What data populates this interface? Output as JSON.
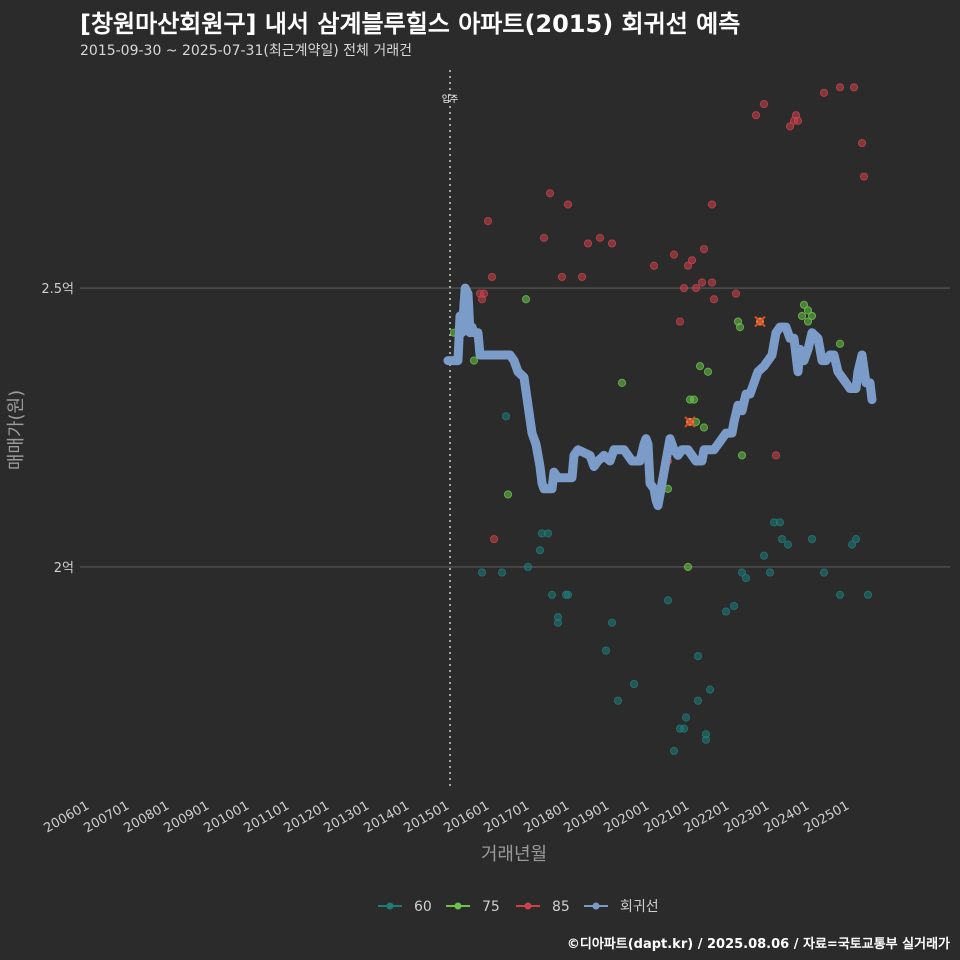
{
  "header": {
    "title": "[창원마산회원구] 내서 삼계블루힐스 아파트(2015) 회귀선 예측",
    "subtitle": "2015-09-30 ~ 2025-07-31(최근계약일) 전체 거래건"
  },
  "caption": "©디아파트(dapt.kr) / 2025.08.06 / 자료=국토교통부 실거래가",
  "colors": {
    "background": "#2b2b2c",
    "s60": "#1f7a78",
    "s75": "#6cc24a",
    "s85": "#c9424a",
    "regression": "#7b9cc8",
    "grid": "#5a5a5a",
    "marker": "#e04a2a"
  },
  "chart_data": {
    "type": "scatter",
    "xlabel": "거래년월",
    "ylabel": "매매가(원)",
    "xlim": [
      2005.75,
      2027.5
    ],
    "ylim": [
      1.6,
      2.9
    ],
    "x_ticks": [
      {
        "value": 2006,
        "label": "200601"
      },
      {
        "value": 2007,
        "label": "200701"
      },
      {
        "value": 2008,
        "label": "200801"
      },
      {
        "value": 2009,
        "label": "200901"
      },
      {
        "value": 2010,
        "label": "201001"
      },
      {
        "value": 2011,
        "label": "201101"
      },
      {
        "value": 2012,
        "label": "201201"
      },
      {
        "value": 2013,
        "label": "201301"
      },
      {
        "value": 2014,
        "label": "201401"
      },
      {
        "value": 2015,
        "label": "201501"
      },
      {
        "value": 2016,
        "label": "201601"
      },
      {
        "value": 2017,
        "label": "201701"
      },
      {
        "value": 2018,
        "label": "201801"
      },
      {
        "value": 2019,
        "label": "201901"
      },
      {
        "value": 2020,
        "label": "202001"
      },
      {
        "value": 2021,
        "label": "202101"
      },
      {
        "value": 2022,
        "label": "202201"
      },
      {
        "value": 2023,
        "label": "202301"
      },
      {
        "value": 2024,
        "label": "202401"
      },
      {
        "value": 2025,
        "label": "202501"
      }
    ],
    "y_ticks": [
      {
        "value": 2.0,
        "label": "2억"
      },
      {
        "value": 2.5,
        "label": "2.5억"
      }
    ],
    "annotation": {
      "x": 2015.0,
      "label": "입주"
    },
    "legend": [
      {
        "key": "60",
        "label": "60"
      },
      {
        "key": "75",
        "label": "75"
      },
      {
        "key": "85",
        "label": "85"
      },
      {
        "key": "regression",
        "label": "회귀선"
      }
    ],
    "series": [
      {
        "name": "60",
        "points": [
          [
            2015.8,
            1.99
          ],
          [
            2016.3,
            1.99
          ],
          [
            2016.4,
            2.27
          ],
          [
            2016.95,
            2.0
          ],
          [
            2017.25,
            2.03
          ],
          [
            2017.3,
            2.06
          ],
          [
            2017.45,
            2.06
          ],
          [
            2017.55,
            1.95
          ],
          [
            2017.7,
            1.91
          ],
          [
            2017.7,
            1.9
          ],
          [
            2017.9,
            1.95
          ],
          [
            2017.95,
            1.95
          ],
          [
            2018.9,
            1.85
          ],
          [
            2019.05,
            1.9
          ],
          [
            2019.2,
            1.76
          ],
          [
            2019.6,
            1.79
          ],
          [
            2020.45,
            1.94
          ],
          [
            2020.6,
            1.67
          ],
          [
            2020.75,
            1.71
          ],
          [
            2020.85,
            1.71
          ],
          [
            2020.9,
            1.73
          ],
          [
            2021.2,
            1.76
          ],
          [
            2021.2,
            1.84
          ],
          [
            2021.4,
            1.7
          ],
          [
            2021.4,
            1.69
          ],
          [
            2021.5,
            1.78
          ],
          [
            2021.9,
            1.92
          ],
          [
            2022.1,
            1.93
          ],
          [
            2022.3,
            1.99
          ],
          [
            2022.4,
            1.98
          ],
          [
            2022.85,
            2.02
          ],
          [
            2023.0,
            1.99
          ],
          [
            2023.1,
            2.08
          ],
          [
            2023.25,
            2.08
          ],
          [
            2023.3,
            2.05
          ],
          [
            2023.45,
            2.04
          ],
          [
            2024.05,
            2.05
          ],
          [
            2024.35,
            1.99
          ],
          [
            2024.75,
            1.95
          ],
          [
            2025.05,
            2.04
          ],
          [
            2025.15,
            2.05
          ],
          [
            2025.45,
            1.95
          ]
        ]
      },
      {
        "name": "75",
        "points": [
          [
            2015.1,
            2.42
          ],
          [
            2015.6,
            2.37
          ],
          [
            2016.45,
            2.13
          ],
          [
            2016.9,
            2.48
          ],
          [
            2019.3,
            2.33
          ],
          [
            2020.45,
            2.14
          ],
          [
            2020.95,
            2.0
          ],
          [
            2021.0,
            2.3
          ],
          [
            2021.1,
            2.3
          ],
          [
            2021.15,
            2.26
          ],
          [
            2021.25,
            2.36
          ],
          [
            2021.35,
            2.25
          ],
          [
            2021.45,
            2.35
          ],
          [
            2021.5,
            2.21
          ],
          [
            2022.2,
            2.44
          ],
          [
            2022.25,
            2.43
          ],
          [
            2022.3,
            2.2
          ],
          [
            2023.8,
            2.45
          ],
          [
            2023.85,
            2.47
          ],
          [
            2023.95,
            2.44
          ],
          [
            2023.95,
            2.46
          ],
          [
            2024.05,
            2.45
          ],
          [
            2024.75,
            2.4
          ]
        ]
      },
      {
        "name": "85",
        "points": [
          [
            2015.75,
            2.49
          ],
          [
            2015.8,
            2.48
          ],
          [
            2015.85,
            2.49
          ],
          [
            2015.95,
            2.62
          ],
          [
            2016.05,
            2.52
          ],
          [
            2016.1,
            2.05
          ],
          [
            2017.35,
            2.59
          ],
          [
            2017.5,
            2.67
          ],
          [
            2017.8,
            2.52
          ],
          [
            2017.95,
            2.65
          ],
          [
            2018.3,
            2.52
          ],
          [
            2018.45,
            2.58
          ],
          [
            2018.75,
            2.59
          ],
          [
            2019.05,
            2.58
          ],
          [
            2020.1,
            2.54
          ],
          [
            2020.45,
            2.19
          ],
          [
            2020.6,
            2.56
          ],
          [
            2020.75,
            2.44
          ],
          [
            2020.85,
            2.5
          ],
          [
            2020.95,
            2.54
          ],
          [
            2021.05,
            2.55
          ],
          [
            2021.15,
            2.5
          ],
          [
            2021.3,
            2.51
          ],
          [
            2021.35,
            2.57
          ],
          [
            2021.55,
            2.65
          ],
          [
            2021.55,
            2.51
          ],
          [
            2021.6,
            2.48
          ],
          [
            2022.15,
            2.49
          ],
          [
            2022.65,
            2.81
          ],
          [
            2022.85,
            2.83
          ],
          [
            2023.15,
            2.2
          ],
          [
            2023.5,
            2.79
          ],
          [
            2023.6,
            2.8
          ],
          [
            2023.65,
            2.81
          ],
          [
            2023.7,
            2.8
          ],
          [
            2024.35,
            2.85
          ],
          [
            2024.75,
            2.86
          ],
          [
            2025.1,
            2.86
          ],
          [
            2025.3,
            2.76
          ],
          [
            2025.35,
            2.7
          ]
        ]
      },
      {
        "name": "회귀선",
        "line": [
          [
            2014.95,
            2.37
          ],
          [
            2015.1,
            2.37
          ],
          [
            2015.2,
            2.37
          ],
          [
            2015.25,
            2.45
          ],
          [
            2015.3,
            2.42
          ],
          [
            2015.38,
            2.5
          ],
          [
            2015.45,
            2.49
          ],
          [
            2015.5,
            2.42
          ],
          [
            2015.55,
            2.43
          ],
          [
            2015.6,
            2.42
          ],
          [
            2015.7,
            2.42
          ],
          [
            2015.75,
            2.38
          ],
          [
            2016.0,
            2.38
          ],
          [
            2016.2,
            2.38
          ],
          [
            2016.5,
            2.38
          ],
          [
            2016.6,
            2.37
          ],
          [
            2016.7,
            2.35
          ],
          [
            2016.85,
            2.34
          ],
          [
            2016.95,
            2.29
          ],
          [
            2017.05,
            2.24
          ],
          [
            2017.15,
            2.22
          ],
          [
            2017.25,
            2.18
          ],
          [
            2017.3,
            2.15
          ],
          [
            2017.35,
            2.14
          ],
          [
            2017.55,
            2.14
          ],
          [
            2017.6,
            2.17
          ],
          [
            2017.7,
            2.16
          ],
          [
            2017.95,
            2.16
          ],
          [
            2018.05,
            2.16
          ],
          [
            2018.1,
            2.2
          ],
          [
            2018.2,
            2.21
          ],
          [
            2018.5,
            2.2
          ],
          [
            2018.6,
            2.18
          ],
          [
            2018.7,
            2.19
          ],
          [
            2018.85,
            2.2
          ],
          [
            2019.0,
            2.19
          ],
          [
            2019.1,
            2.21
          ],
          [
            2019.35,
            2.21
          ],
          [
            2019.45,
            2.2
          ],
          [
            2019.55,
            2.19
          ],
          [
            2019.75,
            2.19
          ],
          [
            2019.85,
            2.22
          ],
          [
            2019.9,
            2.23
          ],
          [
            2019.95,
            2.22
          ],
          [
            2020.0,
            2.15
          ],
          [
            2020.1,
            2.14
          ],
          [
            2020.15,
            2.12
          ],
          [
            2020.2,
            2.11
          ],
          [
            2020.25,
            2.13
          ],
          [
            2020.35,
            2.17
          ],
          [
            2020.5,
            2.23
          ],
          [
            2020.6,
            2.21
          ],
          [
            2020.7,
            2.2
          ],
          [
            2020.8,
            2.21
          ],
          [
            2020.95,
            2.21
          ],
          [
            2021.05,
            2.2
          ],
          [
            2021.15,
            2.19
          ],
          [
            2021.3,
            2.19
          ],
          [
            2021.35,
            2.21
          ],
          [
            2021.5,
            2.21
          ],
          [
            2021.6,
            2.21
          ],
          [
            2021.7,
            2.22
          ],
          [
            2021.8,
            2.23
          ],
          [
            2021.9,
            2.24
          ],
          [
            2022.05,
            2.24
          ],
          [
            2022.1,
            2.26
          ],
          [
            2022.2,
            2.29
          ],
          [
            2022.3,
            2.28
          ],
          [
            2022.4,
            2.31
          ],
          [
            2022.5,
            2.31
          ],
          [
            2022.6,
            2.33
          ],
          [
            2022.7,
            2.35
          ],
          [
            2022.85,
            2.36
          ],
          [
            2022.95,
            2.37
          ],
          [
            2023.05,
            2.38
          ],
          [
            2023.15,
            2.42
          ],
          [
            2023.25,
            2.43
          ],
          [
            2023.4,
            2.43
          ],
          [
            2023.5,
            2.41
          ],
          [
            2023.6,
            2.41
          ],
          [
            2023.7,
            2.35
          ],
          [
            2023.75,
            2.39
          ],
          [
            2023.85,
            2.37
          ],
          [
            2023.95,
            2.39
          ],
          [
            2024.05,
            2.42
          ],
          [
            2024.2,
            2.41
          ],
          [
            2024.3,
            2.37
          ],
          [
            2024.4,
            2.37
          ],
          [
            2024.5,
            2.38
          ],
          [
            2024.6,
            2.38
          ],
          [
            2024.7,
            2.35
          ],
          [
            2024.8,
            2.34
          ],
          [
            2024.9,
            2.33
          ],
          [
            2025.0,
            2.32
          ],
          [
            2025.15,
            2.32
          ],
          [
            2025.2,
            2.35
          ],
          [
            2025.3,
            2.38
          ],
          [
            2025.4,
            2.33
          ],
          [
            2025.5,
            2.33
          ],
          [
            2025.55,
            2.3
          ]
        ]
      }
    ],
    "markers": [
      [
        2021.0,
        2.26
      ],
      [
        2022.75,
        2.44
      ]
    ]
  }
}
